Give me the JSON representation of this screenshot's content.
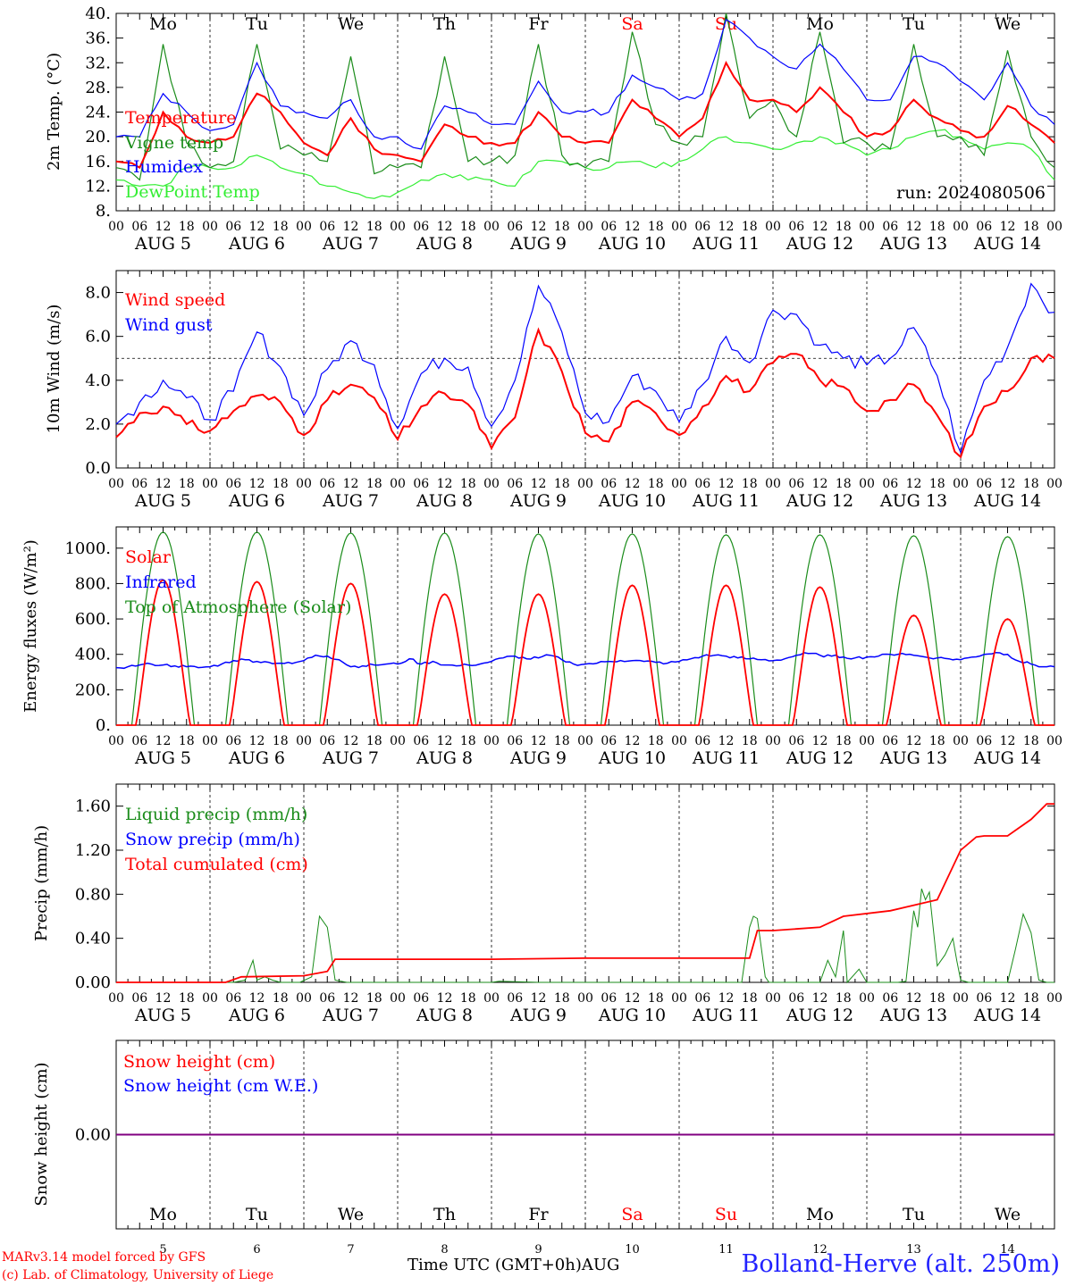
{
  "run_label": "run: 2024080506",
  "colors": {
    "red": "#ff0000",
    "green": "#1a8c1a",
    "blue": "#0000ff",
    "lightgreen": "#33ee33",
    "purple": "#800080"
  },
  "days": [
    {
      "dow": "Mo",
      "date": "AUG  5",
      "num": "5",
      "weekend": false
    },
    {
      "dow": "Tu",
      "date": "AUG  6",
      "num": "6",
      "weekend": false
    },
    {
      "dow": "We",
      "date": "AUG  7",
      "num": "7",
      "weekend": false
    },
    {
      "dow": "Th",
      "date": "AUG  8",
      "num": "8",
      "weekend": false
    },
    {
      "dow": "Fr",
      "date": "AUG  9",
      "num": "9",
      "weekend": false
    },
    {
      "dow": "Sa",
      "date": "AUG 10",
      "num": "10",
      "weekend": true
    },
    {
      "dow": "Su",
      "date": "AUG 11",
      "num": "11",
      "weekend": true
    },
    {
      "dow": "Mo",
      "date": "AUG 12",
      "num": "12",
      "weekend": false
    },
    {
      "dow": "Tu",
      "date": "AUG 13",
      "num": "13",
      "weekend": false
    },
    {
      "dow": "We",
      "date": "AUG 14",
      "num": "14",
      "weekend": false
    }
  ],
  "hour_labels": [
    "00",
    "06",
    "12",
    "18"
  ],
  "footer": {
    "credit1": "MARv3.14 model forced by GFS",
    "credit2": "(c) Lab. of Climatology, University of Liege",
    "time_label": "Time UTC (GMT+0h)AUG",
    "station": "Bolland-Herve (alt. 250m)"
  },
  "chart_data": [
    {
      "type": "line",
      "ylabel": "2m Temp. (°C)",
      "ylim": [
        8,
        40
      ],
      "yticks": [
        8,
        12,
        16,
        20,
        24,
        28,
        32,
        36,
        40
      ],
      "ytick_labels": [
        "8.",
        "12.",
        "16.",
        "20.",
        "24.",
        "28.",
        "32.",
        "36.",
        "40."
      ],
      "x_hours": [
        0,
        6,
        12,
        18,
        24,
        30,
        36,
        42,
        48,
        54,
        60,
        66,
        72,
        78,
        84,
        90,
        96,
        102,
        108,
        114,
        120,
        126,
        132,
        138,
        144,
        150,
        156,
        162,
        168,
        174,
        180,
        186,
        192,
        198,
        204,
        210,
        216,
        222,
        228,
        234,
        240
      ],
      "series": [
        {
          "name": "Temperature",
          "color": "#ff0000",
          "values": [
            16,
            15,
            24,
            20,
            19,
            20,
            27,
            24,
            19,
            17,
            23,
            18,
            17,
            16,
            22,
            20,
            19,
            19,
            24,
            20,
            19,
            19,
            26,
            23,
            20,
            23,
            32,
            26,
            26,
            24,
            28,
            24,
            20,
            21,
            26,
            23,
            21,
            20,
            25,
            22,
            19
          ]
        },
        {
          "name": "Vigne temp",
          "color": "#1a8c1a",
          "values": [
            15,
            13,
            35,
            19,
            15,
            16,
            35,
            18,
            17,
            16,
            33,
            14,
            15,
            15,
            33,
            16,
            16,
            17,
            35,
            17,
            15,
            16,
            37,
            22,
            19,
            20,
            40,
            23,
            26,
            20,
            37,
            19,
            19,
            18,
            35,
            20,
            20,
            17,
            34,
            20,
            15
          ]
        },
        {
          "name": "Humidex",
          "color": "#0000ff",
          "values": [
            20,
            20,
            27,
            24,
            21,
            22,
            32,
            25,
            24,
            23,
            26,
            20,
            20,
            18,
            25,
            24,
            22,
            22,
            29,
            24,
            24,
            24,
            30,
            28,
            26,
            27,
            39,
            36,
            33,
            31,
            35,
            31,
            26,
            26,
            33,
            32,
            29,
            26,
            32,
            25,
            22
          ]
        },
        {
          "name": "DewPoint Temp",
          "color": "#33ee33",
          "values": [
            13,
            12,
            12,
            15,
            15,
            15,
            17,
            15,
            14,
            12,
            11,
            10,
            11,
            13,
            14,
            13,
            13,
            12,
            16,
            16,
            15,
            15,
            16,
            15,
            16,
            18,
            20,
            19,
            18,
            19,
            20,
            19,
            17,
            18,
            20,
            21,
            20,
            18,
            19,
            18,
            13
          ]
        }
      ],
      "legend": [
        "Temperature",
        "Vigne temp",
        "Humidex",
        "DewPoint Temp"
      ]
    },
    {
      "type": "line",
      "ylabel": "10m Wind (m/s)",
      "ylim": [
        0,
        9
      ],
      "yticks": [
        0,
        2,
        4,
        6,
        8
      ],
      "ytick_labels": [
        "0.0",
        "2.0",
        "4.0",
        "6.0",
        "8.0"
      ],
      "reference_line": 5,
      "x_hours": [
        0,
        6,
        12,
        18,
        24,
        30,
        36,
        42,
        48,
        54,
        60,
        66,
        72,
        78,
        84,
        90,
        96,
        102,
        108,
        114,
        120,
        126,
        132,
        138,
        144,
        150,
        156,
        162,
        168,
        174,
        180,
        186,
        192,
        198,
        204,
        210,
        216,
        222,
        228,
        234,
        240
      ],
      "series": [
        {
          "name": "Wind speed",
          "color": "#ff0000",
          "values": [
            1.4,
            2.5,
            2.8,
            2.0,
            1.7,
            2.6,
            3.3,
            3.0,
            1.5,
            3.1,
            3.8,
            3.2,
            1.3,
            2.8,
            3.4,
            2.9,
            0.9,
            2.3,
            6.3,
            4.4,
            1.6,
            1.2,
            3.0,
            2.5,
            1.5,
            2.8,
            4.2,
            3.5,
            4.8,
            5.2,
            4.0,
            3.7,
            2.6,
            3.1,
            3.8,
            2.4,
            0.5,
            2.8,
            3.5,
            5.0,
            5.0
          ]
        },
        {
          "name": "Wind gust",
          "color": "#0000ff",
          "values": [
            2.0,
            3.0,
            4.0,
            3.2,
            2.2,
            3.5,
            6.2,
            4.6,
            2.4,
            4.5,
            5.8,
            4.7,
            1.8,
            4.3,
            5.0,
            4.6,
            1.9,
            4.0,
            8.3,
            6.2,
            2.5,
            2.1,
            4.2,
            3.5,
            2.1,
            3.8,
            6.0,
            4.8,
            7.2,
            7.0,
            5.6,
            5.0,
            4.7,
            5.0,
            6.4,
            4.2,
            0.7,
            4.0,
            5.5,
            8.4,
            7.1
          ]
        }
      ],
      "legend": [
        "Wind speed",
        "Wind gust"
      ]
    },
    {
      "type": "line",
      "ylabel": "Energy fluxes (W/m²)",
      "ylim": [
        0,
        1120
      ],
      "yticks": [
        0,
        200,
        400,
        600,
        800,
        1000
      ],
      "ytick_labels": [
        "0.",
        "200.",
        "400.",
        "600.",
        "800.",
        "1000."
      ],
      "peaks": {
        "toa": [
          1090,
          1090,
          1085,
          1085,
          1080,
          1080,
          1075,
          1075,
          1070,
          1065
        ],
        "solar": [
          820,
          810,
          800,
          740,
          740,
          790,
          790,
          780,
          620,
          600
        ]
      },
      "infrared_daily": [
        [
          325,
          330,
          340,
          345,
          340,
          335,
          330,
          325
        ],
        [
          330,
          345,
          365,
          370,
          360,
          355,
          350,
          348
        ],
        [
          365,
          395,
          390,
          370,
          330,
          335,
          340,
          345
        ],
        [
          345,
          375,
          345,
          360,
          340,
          335,
          340,
          345
        ],
        [
          360,
          380,
          390,
          375,
          380,
          395,
          370,
          345
        ],
        [
          345,
          350,
          360,
          365,
          365,
          360,
          355,
          350
        ],
        [
          360,
          375,
          390,
          395,
          390,
          380,
          375,
          370
        ],
        [
          365,
          375,
          395,
          405,
          395,
          390,
          385,
          380
        ],
        [
          385,
          390,
          400,
          405,
          395,
          385,
          380,
          375
        ],
        [
          370,
          385,
          400,
          410,
          400,
          360,
          345,
          330
        ]
      ],
      "series": [
        {
          "name": "Solar",
          "color": "#ff0000"
        },
        {
          "name": "Infrared",
          "color": "#0000ff"
        },
        {
          "name": "Top of Atmosphere (Solar)",
          "color": "#1a8c1a"
        }
      ],
      "legend": [
        "Solar",
        "Infrared",
        "Top of Atmosphere (Solar)"
      ]
    },
    {
      "type": "line",
      "ylabel": "Precip (mm/h)",
      "ylim": [
        0,
        1.8
      ],
      "yticks": [
        0,
        0.4,
        0.8,
        1.2,
        1.6
      ],
      "ytick_labels": [
        "0.00",
        "0.40",
        "0.80",
        "1.20",
        "1.60"
      ],
      "cumulated": {
        "x_hours": [
          0,
          28,
          32,
          48,
          54,
          56,
          60,
          72,
          96,
          120,
          144,
          162,
          164,
          168,
          180,
          186,
          198,
          210,
          216,
          220,
          222,
          228,
          234,
          238,
          240
        ],
        "values": [
          0,
          0,
          0.05,
          0.06,
          0.1,
          0.21,
          0.21,
          0.21,
          0.21,
          0.22,
          0.22,
          0.22,
          0.47,
          0.47,
          0.5,
          0.6,
          0.65,
          0.75,
          1.2,
          1.32,
          1.33,
          1.33,
          1.48,
          1.62,
          1.62
        ]
      },
      "liquid": {
        "x_hours": [
          0,
          30,
          33,
          35,
          36,
          38,
          40,
          42,
          47,
          50,
          52,
          54,
          56,
          59,
          96,
          98,
          108,
          160,
          162,
          163,
          164,
          166,
          167,
          168,
          172,
          180,
          182,
          184,
          186,
          187,
          190,
          192,
          200,
          202,
          204,
          205,
          206,
          207,
          208,
          210,
          212,
          214,
          215,
          216,
          218,
          228,
          230,
          232,
          234,
          236,
          238,
          240
        ],
        "values": [
          0,
          0,
          0.02,
          0.2,
          0.02,
          0.05,
          0.02,
          0,
          0,
          0.05,
          0.6,
          0.5,
          0.02,
          0,
          0,
          0.01,
          0,
          0,
          0.5,
          0.6,
          0.58,
          0.05,
          0,
          0,
          0,
          0,
          0.2,
          0.05,
          0.47,
          0,
          0.12,
          0,
          0,
          0.01,
          0.65,
          0.5,
          0.85,
          0.75,
          0.82,
          0.15,
          0.25,
          0.4,
          0.2,
          0.02,
          0,
          0,
          0.3,
          0.62,
          0.45,
          0.02,
          0,
          0
        ]
      },
      "series": [
        {
          "name": "Liquid precip (mm/h)",
          "color": "#1a8c1a"
        },
        {
          "name": "Snow precip (mm/h)",
          "color": "#0000ff"
        },
        {
          "name": "Total cumulated (cm)",
          "color": "#ff0000"
        }
      ],
      "legend": [
        "Liquid precip (mm/h)",
        "Snow precip (mm/h)",
        "Total cumulated (cm)"
      ]
    },
    {
      "type": "line",
      "ylabel": "Snow height (cm)",
      "ylim": [
        -1,
        1
      ],
      "yticks": [
        0
      ],
      "ytick_labels": [
        "0.00"
      ],
      "series": [
        {
          "name": "Snow height (cm)",
          "color": "#ff0000",
          "values": [
            0,
            0
          ]
        },
        {
          "name": "Snow height (cm W.E.)",
          "color": "#0000ff",
          "values": [
            0,
            0
          ]
        }
      ],
      "legend": [
        "Snow height (cm)",
        "Snow height (cm W.E.)"
      ]
    }
  ]
}
